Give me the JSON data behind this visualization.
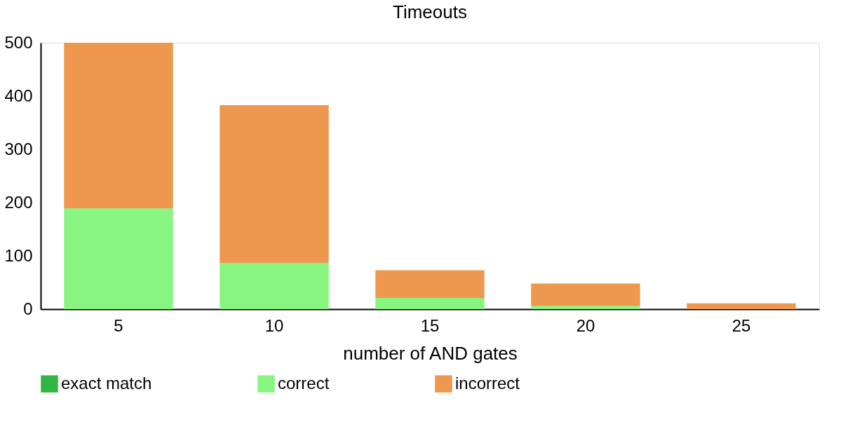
{
  "chart_data": {
    "type": "bar",
    "title": "Timeouts",
    "xlabel": "number of AND gates",
    "categories": [
      "5",
      "10",
      "15",
      "20",
      "25"
    ],
    "stacked": true,
    "series": [
      {
        "name": "exact match",
        "color": "#33b544",
        "values": [
          0,
          0,
          0,
          0,
          0
        ]
      },
      {
        "name": "correct",
        "color": "#87f580",
        "values": [
          189,
          87,
          21,
          6,
          0
        ]
      },
      {
        "name": "incorrect",
        "color": "#ed984e",
        "values": [
          311,
          296,
          52,
          42,
          11
        ]
      }
    ],
    "ylim": [
      0,
      500
    ],
    "yticks": [
      0,
      100,
      200,
      300,
      400,
      500
    ],
    "grid": false,
    "legend": "bottom"
  }
}
